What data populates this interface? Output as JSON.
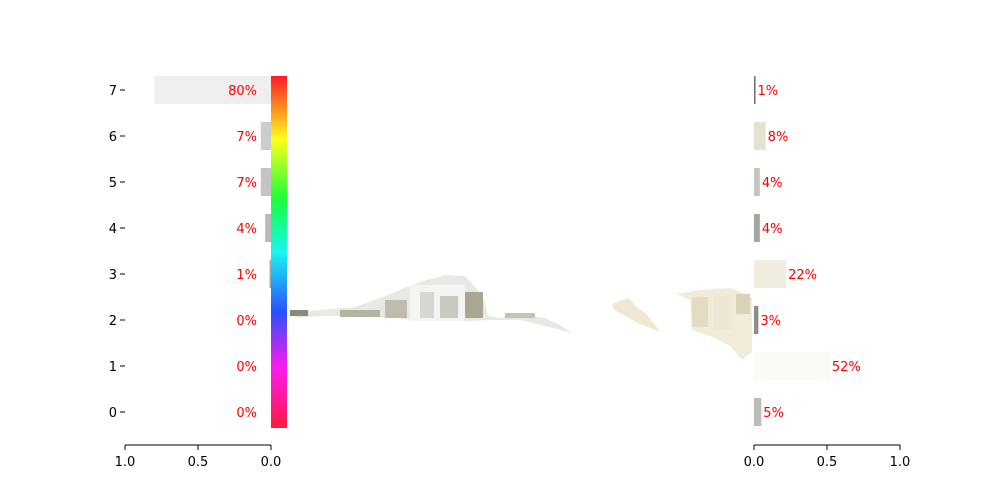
{
  "chart_data": [
    {
      "type": "bar",
      "orientation": "horizontal",
      "panel": "left",
      "x_direction": "reversed",
      "categories": [
        "0",
        "1",
        "2",
        "3",
        "4",
        "5",
        "6",
        "7"
      ],
      "values": [
        0.0,
        0.0,
        0.0,
        0.01,
        0.04,
        0.07,
        0.07,
        0.8
      ],
      "labels": [
        "0%",
        "0%",
        "0%",
        "1%",
        "4%",
        "7%",
        "7%",
        "80%"
      ],
      "bar_colors": [
        "#f0f0f0",
        "#f0f0f0",
        "#f0f0f0",
        "#a8a8a8",
        "#b9b9b9",
        "#c4c4c4",
        "#cccccc",
        "#efefef"
      ],
      "xlim": [
        1.0,
        0.0
      ],
      "x_ticks": [
        "1.0",
        "0.5",
        "0.0"
      ],
      "colorbar": "hue spectrum"
    },
    {
      "type": "bar",
      "orientation": "horizontal",
      "panel": "right",
      "categories": [
        "0",
        "1",
        "2",
        "3",
        "4",
        "5",
        "6",
        "7"
      ],
      "values": [
        0.05,
        0.52,
        0.03,
        0.22,
        0.04,
        0.04,
        0.08,
        0.01
      ],
      "labels": [
        "5%",
        "52%",
        "3%",
        "22%",
        "4%",
        "4%",
        "8%",
        "1%"
      ],
      "bar_colors": [
        "#bdbdb8",
        "#fbfaf6",
        "#8c8c88",
        "#f1ece0",
        "#a7a69c",
        "#c6c6be",
        "#e6e2d2",
        "#6d6a60"
      ],
      "xlim": [
        0.0,
        1.0
      ],
      "x_ticks": [
        "0.0",
        "0.5",
        "1.0"
      ]
    }
  ]
}
